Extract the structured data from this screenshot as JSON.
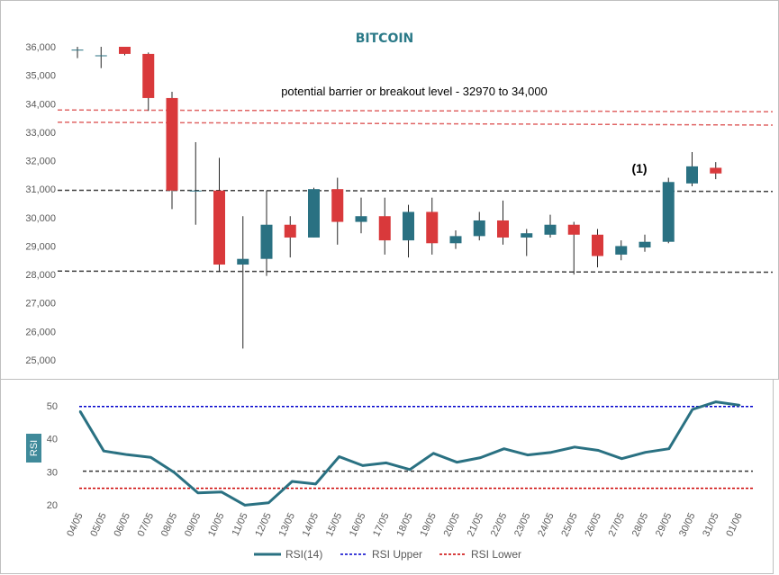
{
  "chart_data": [
    {
      "type": "candlestick",
      "title": "BITCOIN",
      "annotation": "potential barrier or breakout level - 32970 to 34,000",
      "marker_label": "(1)",
      "ylim": [
        24500,
        36300
      ],
      "yticks": [
        25000,
        26000,
        27000,
        28000,
        29000,
        30000,
        31000,
        32000,
        33000,
        34000,
        35000,
        36000
      ],
      "ytick_labels": [
        "25,000",
        "26,000",
        "27,000",
        "28,000",
        "29,000",
        "30,000",
        "31,000",
        "32,000",
        "33,000",
        "34,000",
        "35,000",
        "36,000"
      ],
      "colors": {
        "up": "#2a7182",
        "down": "#d9393b",
        "support": "#404040",
        "resistance": "#e06666"
      },
      "reference_lines": [
        {
          "name": "resistance-upper",
          "start": 33780,
          "end": 33720,
          "style": "red"
        },
        {
          "name": "resistance-lower",
          "start": 33350,
          "end": 33250,
          "style": "red"
        },
        {
          "name": "level-mid",
          "start": 30960,
          "end": 30920,
          "style": "dark"
        },
        {
          "name": "support",
          "start": 28120,
          "end": 28080,
          "style": "dark"
        }
      ],
      "candles": [
        {
          "date": "04/05",
          "open": 35900,
          "high": 36000,
          "low": 35600,
          "close": 35900
        },
        {
          "date": "05/05",
          "open": 35700,
          "high": 36000,
          "low": 35250,
          "close": 35700
        },
        {
          "date": "06/05",
          "open": 36000,
          "high": 36000,
          "low": 35700,
          "close": 35750
        },
        {
          "date": "07/05",
          "open": 35750,
          "high": 35800,
          "low": 33750,
          "close": 34200
        },
        {
          "date": "08/05",
          "open": 34200,
          "high": 34420,
          "low": 30300,
          "close": 30950
        },
        {
          "date": "09/05",
          "open": 30950,
          "high": 32650,
          "low": 29750,
          "close": 30950
        },
        {
          "date": "10/05",
          "open": 30950,
          "high": 32100,
          "low": 28100,
          "close": 28350
        },
        {
          "date": "11/05",
          "open": 28350,
          "high": 30050,
          "low": 25400,
          "close": 28550
        },
        {
          "date": "12/05",
          "open": 28550,
          "high": 30950,
          "low": 27950,
          "close": 29750
        },
        {
          "date": "13/05",
          "open": 29750,
          "high": 30050,
          "low": 28600,
          "close": 29300
        },
        {
          "date": "14/05",
          "open": 29300,
          "high": 31050,
          "low": 29300,
          "close": 31000
        },
        {
          "date": "15/05",
          "open": 31000,
          "high": 31400,
          "low": 29050,
          "close": 29850
        },
        {
          "date": "16/05",
          "open": 29850,
          "high": 30700,
          "low": 29450,
          "close": 30050
        },
        {
          "date": "17/05",
          "open": 30050,
          "high": 30700,
          "low": 28700,
          "close": 29200
        },
        {
          "date": "18/05",
          "open": 29200,
          "high": 30450,
          "low": 28600,
          "close": 30200
        },
        {
          "date": "19/05",
          "open": 30200,
          "high": 30700,
          "low": 28700,
          "close": 29100
        },
        {
          "date": "20/05",
          "open": 29100,
          "high": 29550,
          "low": 28900,
          "close": 29350
        },
        {
          "date": "21/05",
          "open": 29350,
          "high": 30200,
          "low": 29200,
          "close": 29900
        },
        {
          "date": "22/05",
          "open": 29900,
          "high": 30600,
          "low": 29050,
          "close": 29300
        },
        {
          "date": "23/05",
          "open": 29300,
          "high": 29600,
          "low": 28650,
          "close": 29450
        },
        {
          "date": "24/05",
          "open": 29400,
          "high": 30100,
          "low": 29300,
          "close": 29750
        },
        {
          "date": "25/05",
          "open": 29750,
          "high": 29850,
          "low": 28000,
          "close": 29400
        },
        {
          "date": "26/05",
          "open": 29400,
          "high": 29600,
          "low": 28250,
          "close": 28650
        },
        {
          "date": "27/05",
          "open": 28700,
          "high": 29200,
          "low": 28500,
          "close": 29000
        },
        {
          "date": "28/05",
          "open": 28950,
          "high": 29400,
          "low": 28800,
          "close": 29150
        },
        {
          "date": "29/05",
          "open": 29150,
          "high": 31400,
          "low": 29100,
          "close": 31250
        },
        {
          "date": "30/05",
          "open": 31200,
          "high": 32300,
          "low": 31100,
          "close": 31800
        },
        {
          "date": "31/05",
          "open": 31750,
          "high": 31950,
          "low": 31350,
          "close": 31550
        }
      ]
    },
    {
      "type": "line",
      "ylabel": "RSI",
      "ylim": [
        20,
        52
      ],
      "yticks": [
        20,
        30,
        40,
        50
      ],
      "x": [
        "04/05",
        "05/05",
        "06/05",
        "07/05",
        "08/05",
        "09/05",
        "10/05",
        "11/05",
        "12/05",
        "13/05",
        "14/05",
        "15/05",
        "16/05",
        "17/05",
        "18/05",
        "19/05",
        "20/05",
        "21/05",
        "22/05",
        "23/05",
        "24/05",
        "25/05",
        "26/05",
        "27/05",
        "28/05",
        "29/05",
        "30/05",
        "31/05",
        "01/06"
      ],
      "series": [
        {
          "name": "RSI(14)",
          "color": "#2a7182",
          "values": [
            48.3,
            36.3,
            35.2,
            34.4,
            29.8,
            23.6,
            23.9,
            19.9,
            20.6,
            27.1,
            26.3,
            34.6,
            31.9,
            32.7,
            30.7,
            35.6,
            32.9,
            34.3,
            37.0,
            35.1,
            35.9,
            37.5,
            36.5,
            34.0,
            35.9,
            37.0,
            48.9,
            51.2,
            50.2
          ]
        }
      ],
      "reference_lines": [
        {
          "name": "RSI Upper",
          "value": 49.8,
          "color": "#0000cc",
          "in_legend": true
        },
        {
          "name": "RSI Lower",
          "value": 25.0,
          "color": "#cc0000",
          "in_legend": true
        },
        {
          "name": "mid",
          "value": 30.2,
          "color": "#333333",
          "in_legend": false
        }
      ]
    }
  ]
}
